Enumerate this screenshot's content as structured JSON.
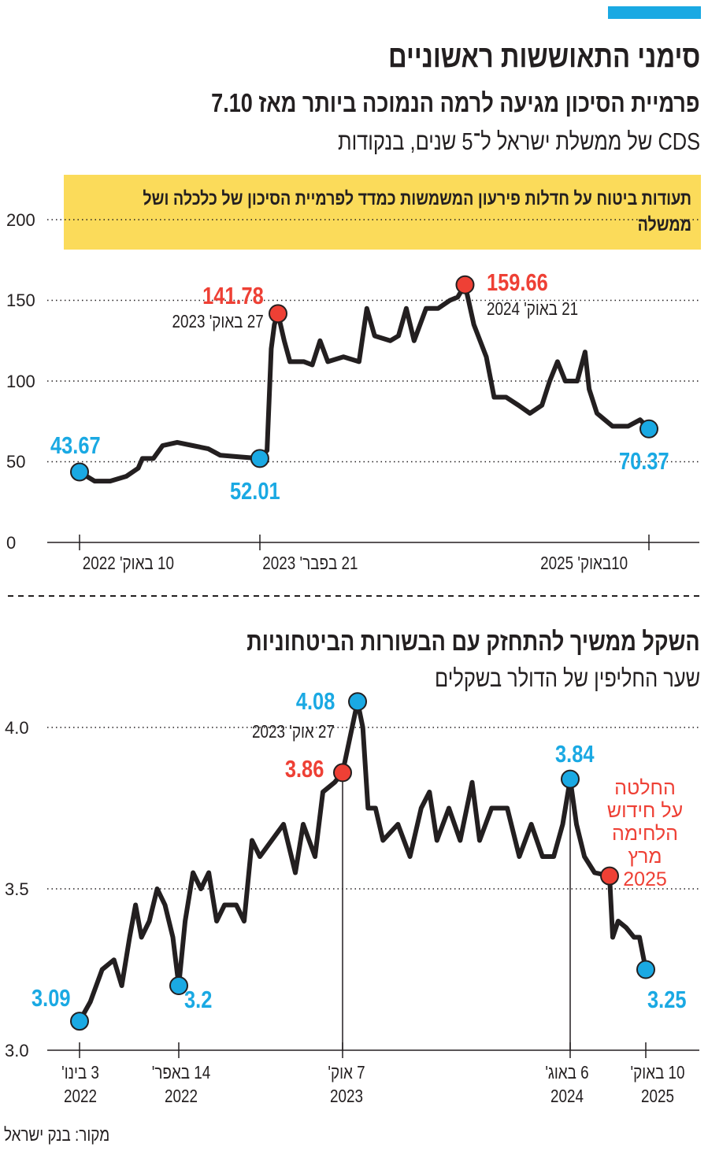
{
  "header": {
    "title": "סימני התאוששות ראשוניים"
  },
  "colors": {
    "accent_blue": "#1aa9e3",
    "accent_red": "#ee4035",
    "highlight_yellow": "#fbdb5a",
    "line": "#231f20"
  },
  "chart_data": [
    {
      "type": "line",
      "title": "פרמיית הסיכון מגיעה לרמה הנמוכה ביותר מאז 7.10",
      "subtitle": "CDS של ממשלת ישראל ל־5 שנים, בנקודות",
      "note": "תעודות ביטוח על חדלות פירעון המשמשות כמדד לפרמיית הסיכון של כלכלה ושל ממשלה",
      "ylim": [
        0,
        200
      ],
      "y_ticks": [
        "0",
        "50",
        "100",
        "150",
        "200"
      ],
      "x_ticks": [
        "10 באוק' 2022",
        "21 בפבר' 2023",
        "10באוק' 2025"
      ],
      "grid": "horizontal dotted",
      "series": [
        {
          "points": [
            [
              "2022-10-10",
              43.67
            ],
            [
              "2022-11-08",
              38
            ],
            [
              "2022-12-08",
              38
            ],
            [
              "2023-01-08",
              41
            ],
            [
              "2023-01-31",
              46
            ],
            [
              "2023-02-08",
              52
            ],
            [
              "2023-03-01",
              52
            ],
            [
              "2023-03-19",
              60
            ],
            [
              "2023-04-16",
              62
            ],
            [
              "2023-05-16",
              60
            ],
            [
              "2023-06-15",
              58
            ],
            [
              "2023-07-08",
              54
            ],
            [
              "2023-08-15",
              53
            ],
            [
              "2023-09-22",
              52.01
            ],
            [
              "2023-10-06",
              57
            ],
            [
              "2023-10-14",
              120
            ],
            [
              "2023-10-20",
              135
            ],
            [
              "2023-10-27",
              141.78
            ],
            [
              "2023-11-08",
              125
            ],
            [
              "2023-11-19",
              112
            ],
            [
              "2023-12-16",
              112
            ],
            [
              "2024-01-01",
              110
            ],
            [
              "2024-01-16",
              125
            ],
            [
              "2024-01-31",
              112
            ],
            [
              "2024-03-01",
              115
            ],
            [
              "2024-03-31",
              112
            ],
            [
              "2024-04-15",
              145
            ],
            [
              "2024-04-30",
              128
            ],
            [
              "2024-05-30",
              125
            ],
            [
              "2024-06-15",
              128
            ],
            [
              "2024-06-30",
              145
            ],
            [
              "2024-07-15",
              125
            ],
            [
              "2024-08-07",
              145
            ],
            [
              "2024-08-30",
              145
            ],
            [
              "2024-09-22",
              150
            ],
            [
              "2024-10-07",
              152
            ],
            [
              "2024-10-21",
              159.66
            ],
            [
              "2024-11-07",
              135
            ],
            [
              "2024-12-01",
              115
            ],
            [
              "2024-12-16",
              90
            ],
            [
              "2025-01-08",
              90
            ],
            [
              "2025-02-01",
              85
            ],
            [
              "2025-02-23",
              80
            ],
            [
              "2025-03-18",
              85
            ],
            [
              "2025-04-02",
              100
            ],
            [
              "2025-04-17",
              112
            ],
            [
              "2025-05-02",
              100
            ],
            [
              "2025-05-25",
              100
            ],
            [
              "2025-06-09",
              118
            ],
            [
              "2025-06-17",
              95
            ],
            [
              "2025-07-02",
              80
            ],
            [
              "2025-08-01",
              72
            ],
            [
              "2025-08-31",
              72
            ],
            [
              "2025-09-23",
              76
            ],
            [
              "2025-10-10",
              70.37
            ]
          ]
        }
      ],
      "markers": [
        {
          "date": "2022-10-10",
          "value": 43.67,
          "label": "43.67",
          "color": "blue"
        },
        {
          "date": "2023-09-22",
          "value": 52.01,
          "label": "52.01",
          "color": "blue"
        },
        {
          "date": "2023-10-27",
          "value": 141.78,
          "label": "141.78",
          "date_label": "27 באוק' 2023",
          "color": "red"
        },
        {
          "date": "2024-10-21",
          "value": 159.66,
          "label": "159.66",
          "date_label": "21 באוק' 2024",
          "color": "red"
        },
        {
          "date": "2025-10-10",
          "value": 70.37,
          "label": "70.37",
          "color": "blue"
        }
      ]
    },
    {
      "type": "line",
      "title": "השקל ממשיך להתחזק עם הבשורות הביטחוניות",
      "subtitle": "שער החליפין של הדולר בשקלים",
      "ylim": [
        3.0,
        4.1
      ],
      "y_ticks": [
        "3.0",
        "3.5",
        "4.0"
      ],
      "x_ticks": [
        "3 בינו' 2022",
        "14 באפר' 2022",
        "7 אוק' 2023",
        "6 באוג' 2024",
        "10 באוק' 2025"
      ],
      "grid": "horizontal dotted",
      "series": [
        {
          "points": [
            [
              "2022-01-03",
              3.09
            ],
            [
              "2022-01-14",
              3.15
            ],
            [
              "2022-01-26",
              3.25
            ],
            [
              "2022-02-07",
              3.28
            ],
            [
              "2022-02-15",
              3.2
            ],
            [
              "2022-02-23",
              3.35
            ],
            [
              "2022-03-01",
              3.45
            ],
            [
              "2022-03-07",
              3.35
            ],
            [
              "2022-03-15",
              3.4
            ],
            [
              "2022-03-23",
              3.5
            ],
            [
              "2022-03-31",
              3.45
            ],
            [
              "2022-04-08",
              3.35
            ],
            [
              "2022-04-14",
              3.2
            ],
            [
              "2022-05-05",
              3.4
            ],
            [
              "2022-05-31",
              3.55
            ],
            [
              "2022-06-26",
              3.5
            ],
            [
              "2022-07-22",
              3.55
            ],
            [
              "2022-08-17",
              3.4
            ],
            [
              "2022-09-12",
              3.45
            ],
            [
              "2022-10-21",
              3.45
            ],
            [
              "2022-11-16",
              3.4
            ],
            [
              "2022-12-12",
              3.65
            ],
            [
              "2023-01-07",
              3.6
            ],
            [
              "2023-02-15",
              3.65
            ],
            [
              "2023-03-26",
              3.7
            ],
            [
              "2023-05-04",
              3.55
            ],
            [
              "2023-05-30",
              3.7
            ],
            [
              "2023-07-08",
              3.6
            ],
            [
              "2023-08-03",
              3.8
            ],
            [
              "2023-09-11",
              3.83
            ],
            [
              "2023-10-07",
              3.86
            ],
            [
              "2023-10-27",
              4.08
            ],
            [
              "2023-11-03",
              4.0
            ],
            [
              "2023-11-10",
              3.75
            ],
            [
              "2023-11-20",
              3.75
            ],
            [
              "2023-11-30",
              3.65
            ],
            [
              "2023-12-20",
              3.7
            ],
            [
              "2024-01-05",
              3.6
            ],
            [
              "2024-01-20",
              3.75
            ],
            [
              "2024-01-31",
              3.8
            ],
            [
              "2024-02-10",
              3.65
            ],
            [
              "2024-02-26",
              3.75
            ],
            [
              "2024-03-12",
              3.65
            ],
            [
              "2024-03-28",
              3.83
            ],
            [
              "2024-04-07",
              3.65
            ],
            [
              "2024-04-23",
              3.75
            ],
            [
              "2024-05-14",
              3.75
            ],
            [
              "2024-05-30",
              3.6
            ],
            [
              "2024-06-15",
              3.7
            ],
            [
              "2024-06-30",
              3.6
            ],
            [
              "2024-07-15",
              3.6
            ],
            [
              "2024-07-27",
              3.7
            ],
            [
              "2024-08-06",
              3.84
            ],
            [
              "2024-09-11",
              3.7
            ],
            [
              "2024-10-26",
              3.6
            ],
            [
              "2024-12-23",
              3.55
            ],
            [
              "2025-03-18",
              3.54
            ],
            [
              "2025-04-05",
              3.35
            ],
            [
              "2025-05-06",
              3.4
            ],
            [
              "2025-06-20",
              3.38
            ],
            [
              "2025-08-04",
              3.35
            ],
            [
              "2025-09-04",
              3.35
            ],
            [
              "2025-10-10",
              3.25
            ]
          ]
        }
      ],
      "markers": [
        {
          "date": "2022-01-03",
          "value": 3.09,
          "label": "3.09",
          "color": "blue"
        },
        {
          "date": "2022-04-14",
          "value": 3.2,
          "label": "3.2",
          "color": "blue"
        },
        {
          "date": "2023-10-07",
          "value": 3.86,
          "label": "3.86",
          "color": "red"
        },
        {
          "date": "2023-10-27",
          "value": 4.08,
          "label": "4.08",
          "date_label": "27 אוק' 2023",
          "color": "blue"
        },
        {
          "date": "2024-08-06",
          "value": 3.84,
          "label": "3.84",
          "color": "blue"
        },
        {
          "date": "2025-03-18",
          "value": 3.54,
          "label": "",
          "color": "red",
          "annotation": [
            "החלטה",
            "על חידוש",
            "הלחימה",
            "מרץ",
            "2025"
          ]
        },
        {
          "date": "2025-10-10",
          "value": 3.25,
          "label": "3.25",
          "color": "blue"
        }
      ]
    }
  ],
  "footer": {
    "source": "מקור: בנק ישראל"
  }
}
